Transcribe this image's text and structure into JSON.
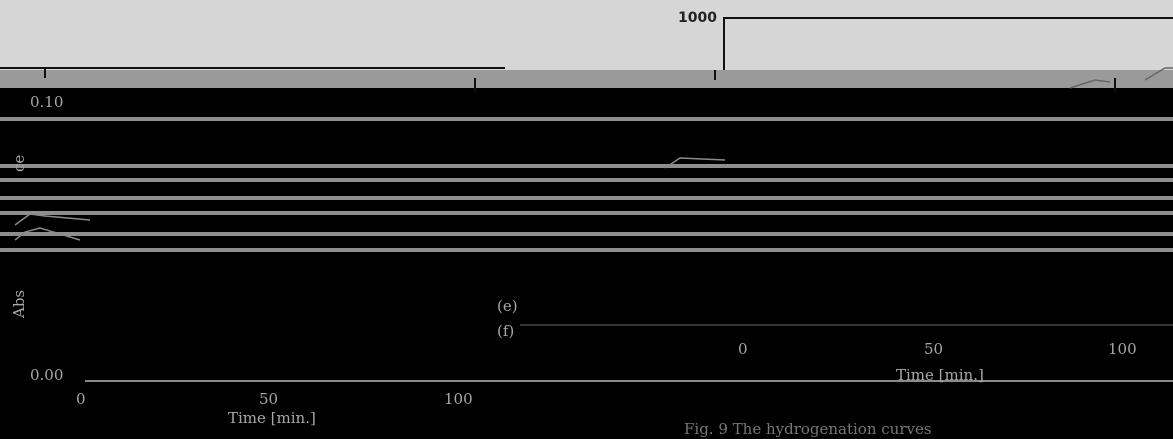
{
  "chart_data": [
    {
      "type": "line",
      "title": "",
      "ylabel": "Abs",
      "ylabel_fragment": "ce",
      "xlabel": "Time [min.]",
      "x_ticks": [
        "0",
        "50",
        "100"
      ],
      "y_ticks": [
        "0.00",
        "0.10"
      ],
      "xlim": [
        0,
        100
      ],
      "ylim": [
        0.0,
        0.1
      ],
      "series": [
        {
          "name": "(e)",
          "x": [
            0,
            50,
            100
          ],
          "y": [
            0.0,
            0.0,
            0.0
          ]
        },
        {
          "name": "(f)",
          "x": [
            0,
            50,
            100
          ],
          "y": [
            0.0,
            0.0,
            0.0
          ]
        }
      ]
    },
    {
      "type": "line",
      "title": "",
      "xlabel": "Time [min.]",
      "x_ticks": [
        "0",
        "50",
        "100"
      ],
      "y_ticks": [
        "1000"
      ],
      "xlim": [
        0,
        100
      ],
      "ylim": [
        0,
        1000
      ],
      "series": [
        {
          "x": [
            0,
            100
          ],
          "y": [
            1000,
            1000
          ]
        }
      ]
    }
  ],
  "caption": "Fig. 9   The hydrogenation curves"
}
